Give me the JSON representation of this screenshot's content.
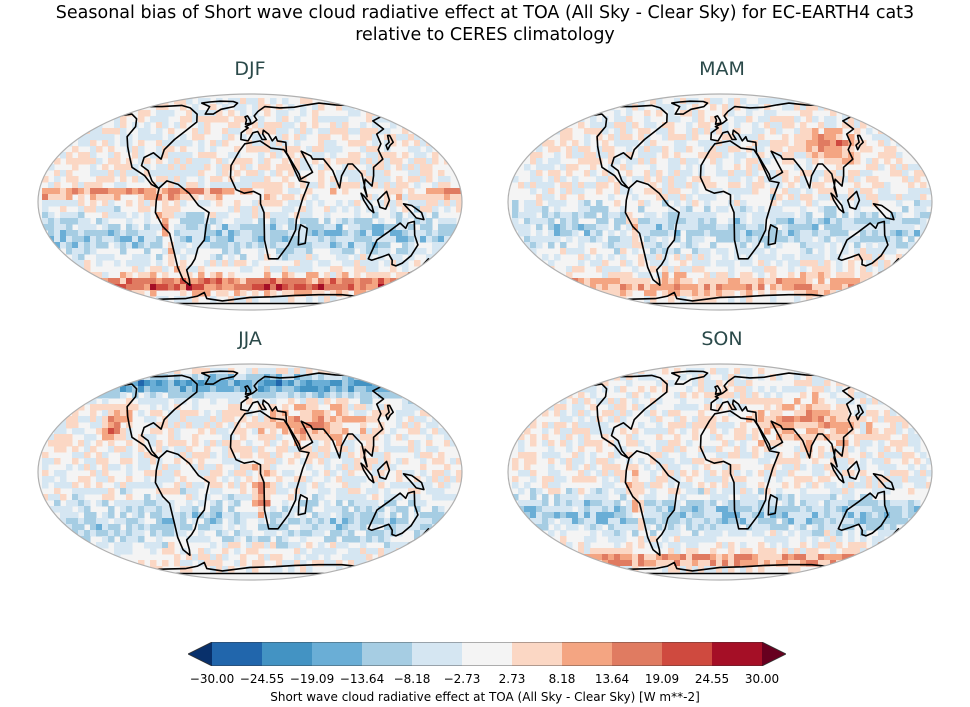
{
  "title_line1": "Seasonal bias of Short wave cloud radiative effect at TOA (All Sky - Clear Sky) for EC-EARTH4 cat3",
  "title_line2": "relative to CERES climatology",
  "chart_data": {
    "type": "heatmap",
    "projection": "Robinson",
    "panels": [
      {
        "name": "DJF"
      },
      {
        "name": "MAM"
      },
      {
        "name": "JJA"
      },
      {
        "name": "SON"
      }
    ],
    "colorbar": {
      "label": "Short wave cloud radiative effect at TOA (All Sky - Clear Sky) [W m**-2]",
      "ticks": [
        "−30.00",
        "−24.55",
        "−19.09",
        "−13.64",
        "−8.18",
        "−2.73",
        "2.73",
        "8.18",
        "13.64",
        "19.09",
        "24.55",
        "30.00"
      ],
      "levels": [
        -30.0,
        -24.55,
        -19.09,
        -13.64,
        -8.18,
        -2.73,
        2.73,
        8.18,
        13.64,
        19.09,
        24.55,
        30.0
      ],
      "colors": [
        "#08306b",
        "#2166ac",
        "#4393c3",
        "#6aaed6",
        "#a6cde3",
        "#d5e6f2",
        "#f4f4f4",
        "#fbd7c4",
        "#f4a582",
        "#e07b61",
        "#cf4a3f",
        "#a50f26",
        "#67001f"
      ],
      "extend": "both"
    }
  }
}
